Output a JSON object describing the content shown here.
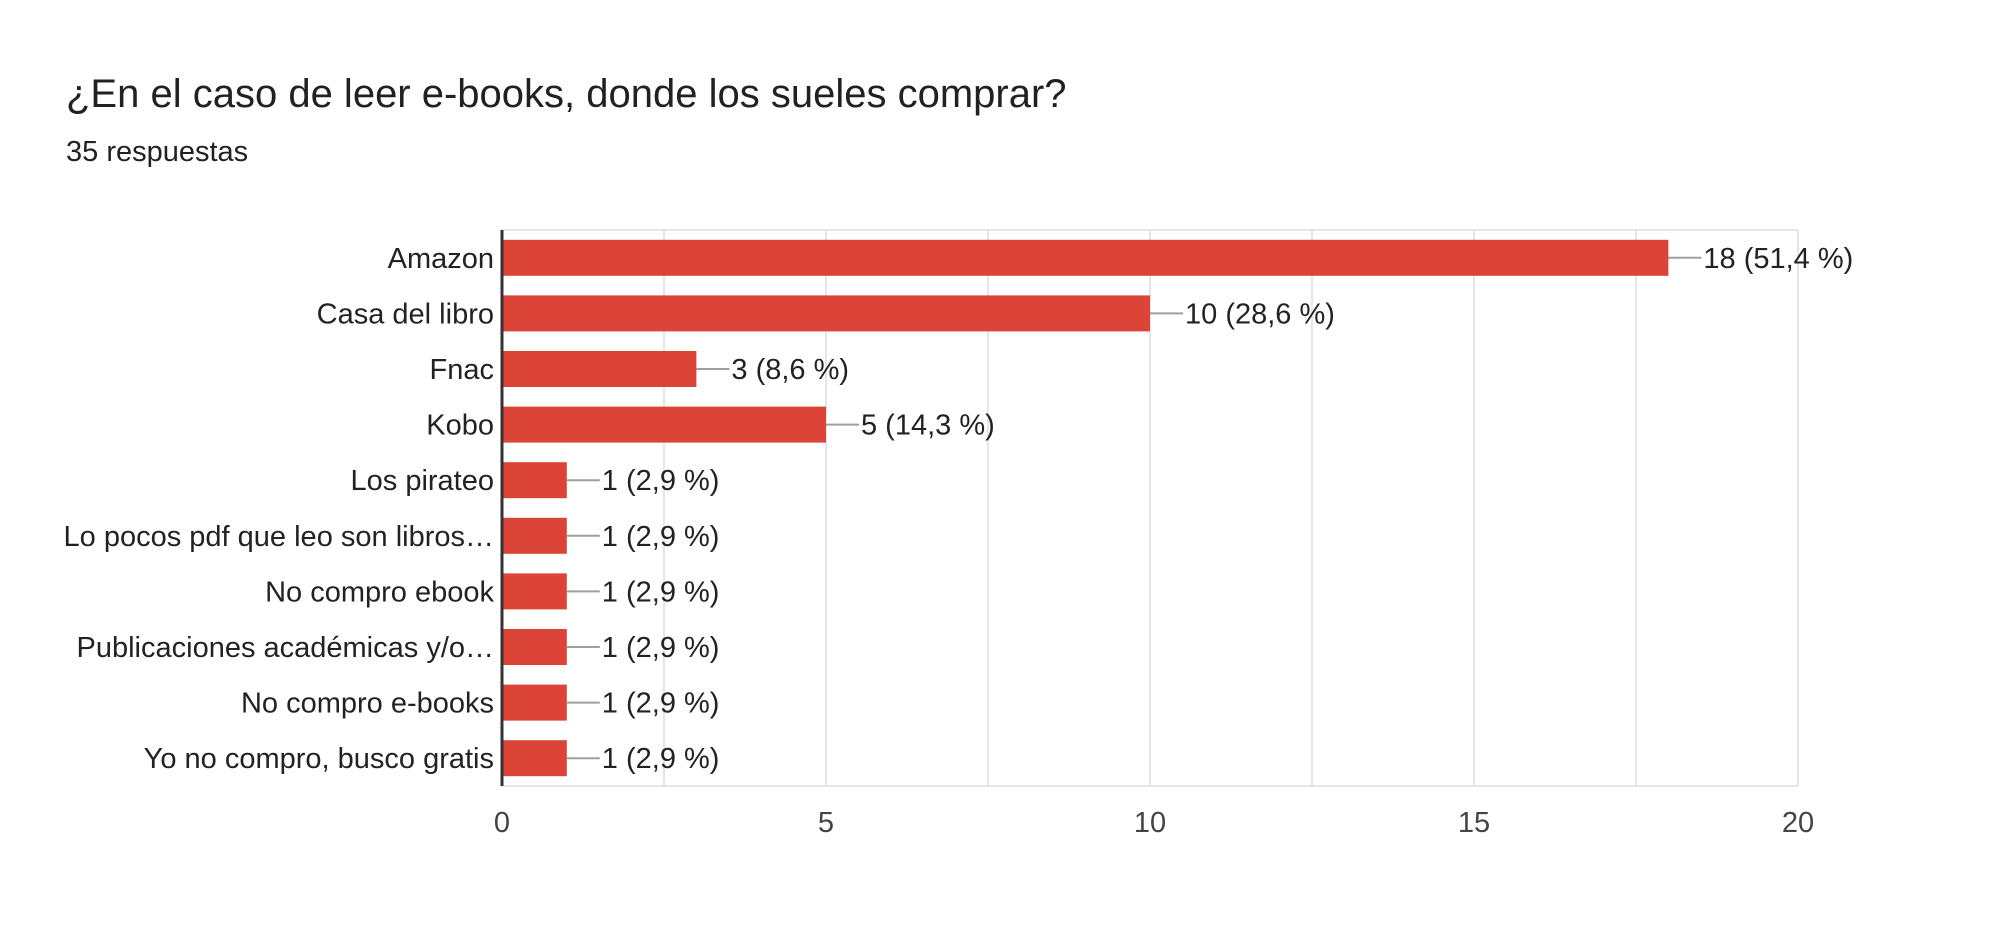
{
  "question": {
    "title": "¿En el caso de leer e-books, donde los sueles comprar?",
    "responses": "35 respuestas"
  },
  "colors": {
    "bar": "#db4437",
    "axis": "#333333",
    "grid": "#e6e6e6",
    "text": "#222222",
    "leader": "#9e9e9e"
  },
  "chart_data": {
    "type": "bar",
    "orientation": "horizontal",
    "categories": [
      "Amazon",
      "Casa del libro",
      "Fnac",
      "Kobo",
      "Los pirateo",
      "Lo pocos pdf que leo son libros…",
      "No compro ebook",
      "Publicaciones académicas y/o…",
      "No compro e-books",
      "Yo no compro, busco gratis"
    ],
    "values": [
      18,
      10,
      3,
      5,
      1,
      1,
      1,
      1,
      1,
      1
    ],
    "value_labels": [
      "18 (51,4 %)",
      "10 (28,6 %)",
      "3 (8,6 %)",
      "5 (14,3 %)",
      "1 (2,9 %)",
      "1 (2,9 %)",
      "1 (2,9 %)",
      "1 (2,9 %)",
      "1 (2,9 %)",
      "1 (2,9 %)"
    ],
    "xlim": [
      0,
      20
    ],
    "xticks": [
      0,
      5,
      10,
      15,
      20
    ],
    "xtick_labels": [
      "0",
      "5",
      "10",
      "15",
      "20"
    ],
    "minor_gridlines": true,
    "grid": true,
    "legend": "none"
  }
}
